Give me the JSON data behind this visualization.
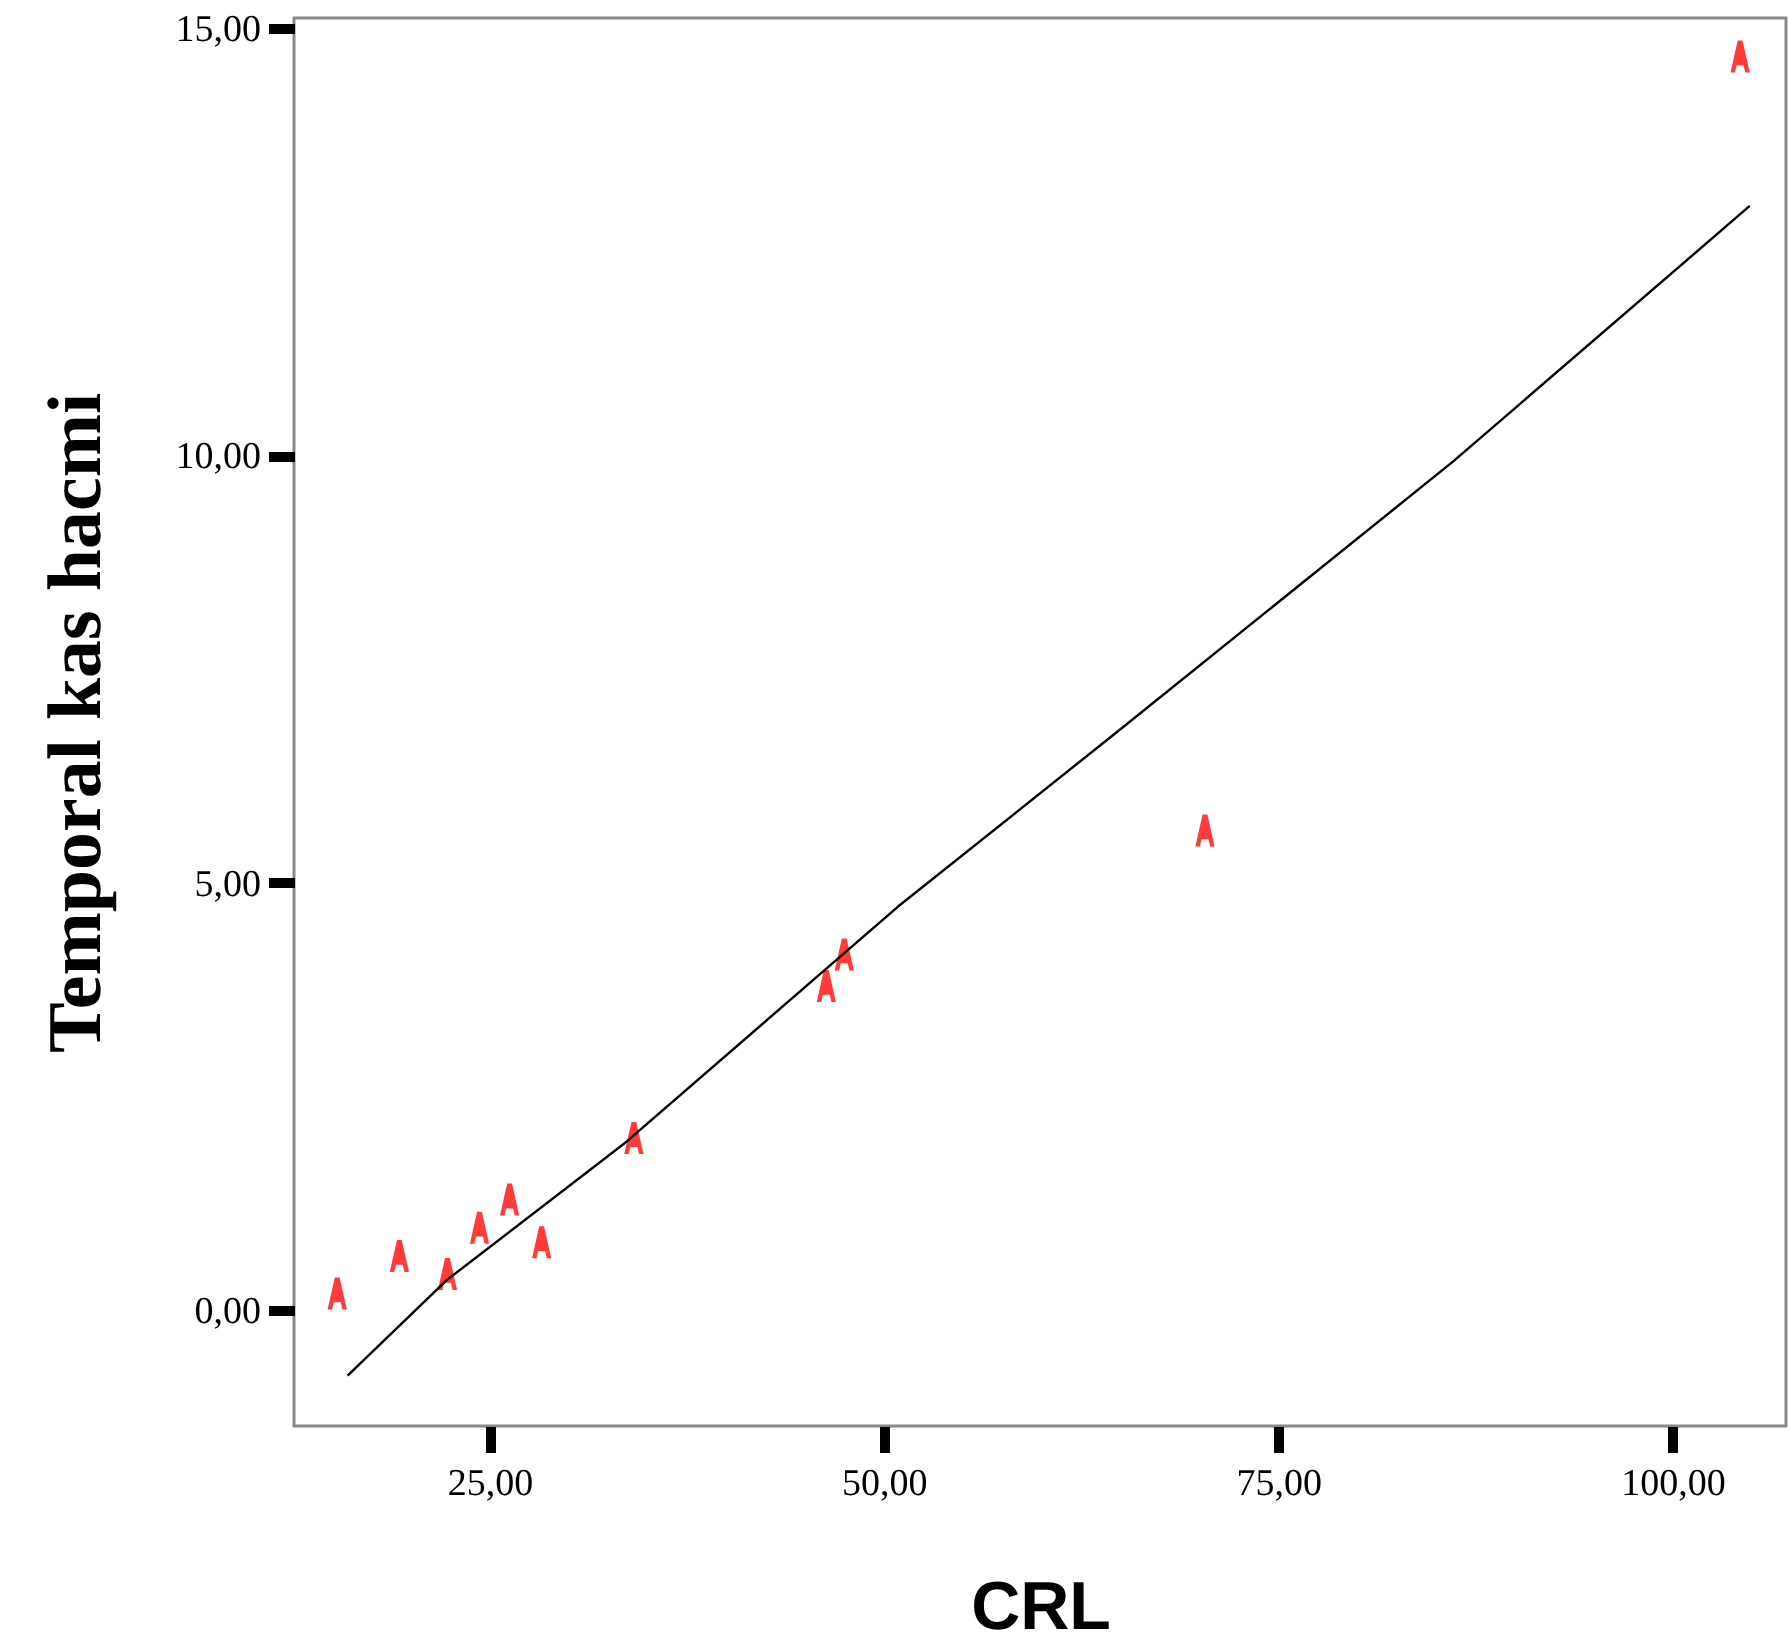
{
  "chart_data": {
    "type": "scatter",
    "xlabel": "CRL",
    "ylabel": "Temporal kas hacmi",
    "xlim": [
      12.6,
      107.2
    ],
    "ylim": [
      -1.36,
      15.12
    ],
    "xticks": [
      {
        "value": 25,
        "label": "25,00"
      },
      {
        "value": 50,
        "label": "50,00"
      },
      {
        "value": 75,
        "label": "75,00"
      },
      {
        "value": 100,
        "label": "100,00"
      }
    ],
    "yticks": [
      {
        "value": 0,
        "label": "0,00"
      },
      {
        "value": 5,
        "label": "5,00"
      },
      {
        "value": 10,
        "label": "10,00"
      },
      {
        "value": 15,
        "label": "15,00"
      }
    ],
    "grid": false,
    "series": [
      {
        "color": "#ff3b3b",
        "x": [
          15.34,
          19.28,
          22.33,
          24.36,
          26.27,
          28.3,
          34.15,
          46.35,
          47.49,
          70.36,
          104.29
        ],
        "values": [
          0.19,
          0.63,
          0.42,
          0.96,
          1.29,
          0.79,
          2.01,
          3.79,
          4.16,
          5.61,
          14.67
        ]
      },
      {
        "type": "line",
        "color": "#000000",
        "x": [
          16.0,
          22.3,
          33.5,
          50.9,
          64.9,
          86.1,
          104.9
        ],
        "values": [
          -0.77,
          0.35,
          1.94,
          4.72,
          6.78,
          9.93,
          12.92
        ]
      }
    ]
  }
}
